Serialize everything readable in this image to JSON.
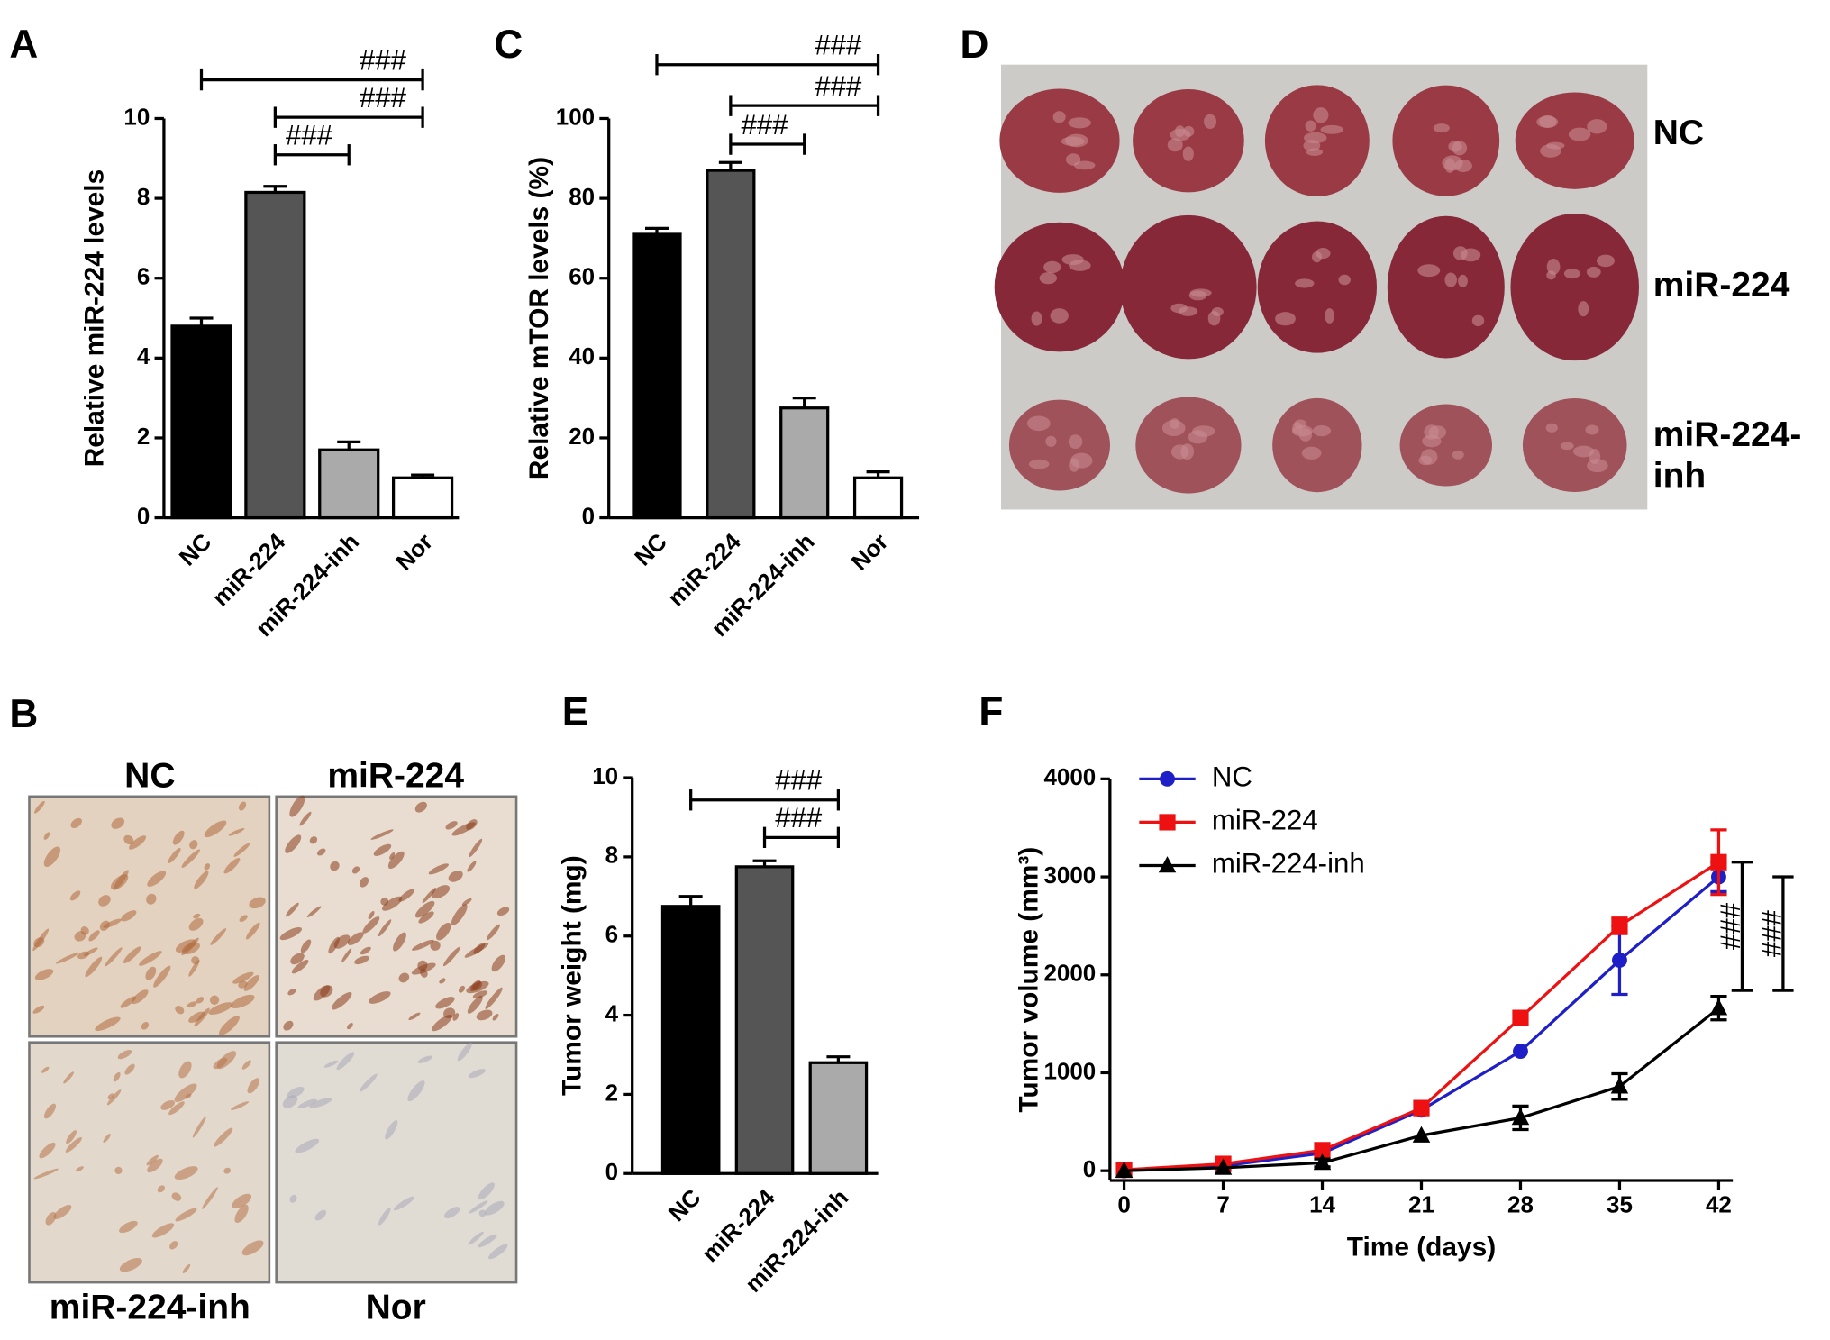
{
  "panels": {
    "b": {
      "label": "B",
      "images": [
        "NC",
        "miR-224",
        "miR-224-inh",
        "Nor"
      ]
    },
    "d": {
      "label": "D",
      "rows": [
        [
          "NC"
        ],
        [
          "miR-224"
        ],
        [
          "miR-224-",
          "inh"
        ]
      ]
    }
  },
  "chart_data": [
    {
      "type": "bar",
      "label": "A",
      "ylabel": "Relative miR-224 levels",
      "categories": [
        "NC",
        "miR-224",
        "miR-224-inh",
        "Nor"
      ],
      "values": [
        4.8,
        8.15,
        1.7,
        1.0
      ],
      "errors": [
        0.2,
        0.15,
        0.2,
        0.07
      ],
      "colors": [
        "#000000",
        "#555555",
        "#aaaaaa",
        "#ffffff"
      ],
      "ylim": [
        0,
        10
      ],
      "yticks": [
        0,
        2,
        4,
        6,
        8,
        10
      ],
      "annotations": [
        {
          "text": "###",
          "from": "miR-224",
          "to": "miR-224-inh"
        },
        {
          "text": "###",
          "from": "miR-224",
          "to": "Nor"
        },
        {
          "text": "###",
          "from": "NC",
          "to": "Nor"
        }
      ]
    },
    {
      "type": "bar",
      "label": "C",
      "ylabel": "Relative mTOR levels (%)",
      "categories": [
        "NC",
        "miR-224",
        "miR-224-inh",
        "Nor"
      ],
      "values": [
        71,
        87,
        27.5,
        10
      ],
      "errors": [
        1.5,
        2,
        2.5,
        1.5
      ],
      "colors": [
        "#000000",
        "#555555",
        "#aaaaaa",
        "#ffffff"
      ],
      "ylim": [
        0,
        100
      ],
      "yticks": [
        0,
        20,
        40,
        60,
        80,
        100
      ],
      "annotations": [
        {
          "text": "###",
          "from": "miR-224",
          "to": "miR-224-inh"
        },
        {
          "text": "###",
          "from": "miR-224",
          "to": "Nor"
        },
        {
          "text": "###",
          "from": "NC",
          "to": "Nor"
        }
      ]
    },
    {
      "type": "bar",
      "label": "E",
      "ylabel": "Tumor weight (mg)",
      "categories": [
        "NC",
        "miR-224",
        "miR-224-inh"
      ],
      "values": [
        6.75,
        7.75,
        2.8
      ],
      "errors": [
        0.25,
        0.15,
        0.15
      ],
      "colors": [
        "#000000",
        "#555555",
        "#aaaaaa"
      ],
      "ylim": [
        0,
        10
      ],
      "yticks": [
        0,
        2,
        4,
        6,
        8,
        10
      ],
      "annotations": [
        {
          "text": "###",
          "from": "miR-224",
          "to": "miR-224-inh"
        },
        {
          "text": "###",
          "from": "NC",
          "to": "miR-224-inh"
        }
      ]
    },
    {
      "type": "line",
      "label": "F",
      "xlabel": "Time (days)",
      "ylabel": "Tumor volume (mm³)",
      "x": [
        0,
        7,
        14,
        21,
        28,
        35,
        42
      ],
      "series": [
        {
          "name": "NC",
          "color": "#1f1fc8",
          "marker": "circle",
          "values": [
            0,
            50,
            180,
            620,
            1220,
            2150,
            3000
          ],
          "errors": [
            0,
            0,
            0,
            0,
            0,
            350,
            150
          ]
        },
        {
          "name": "miR-224",
          "color": "#ee1111",
          "marker": "square",
          "values": [
            10,
            70,
            210,
            640,
            1560,
            2500,
            3150
          ],
          "errors": [
            0,
            0,
            0,
            0,
            0,
            80,
            330
          ]
        },
        {
          "name": "miR-224-inh",
          "color": "#000000",
          "marker": "triangle",
          "values": [
            0,
            30,
            80,
            360,
            540,
            860,
            1660
          ],
          "errors": [
            0,
            0,
            40,
            0,
            120,
            130,
            120
          ]
        }
      ],
      "xlim": [
        -1,
        43
      ],
      "xticks": [
        0,
        7,
        14,
        21,
        28,
        35,
        42
      ],
      "ylim": [
        -100,
        4000
      ],
      "yticks": [
        0,
        1000,
        2000,
        3000,
        4000
      ],
      "legend": "upper left",
      "annotations": [
        {
          "text": "###",
          "from": "miR-224",
          "to": "miR-224-inh"
        },
        {
          "text": "###",
          "from": "NC",
          "to": "miR-224-inh"
        }
      ]
    }
  ]
}
